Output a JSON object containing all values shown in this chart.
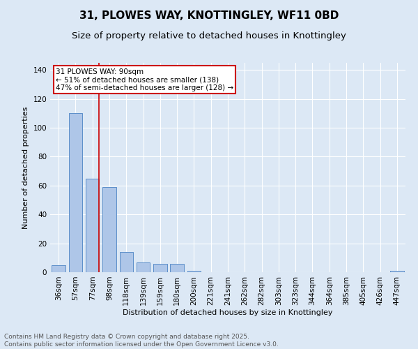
{
  "title_line1": "31, PLOWES WAY, KNOTTINGLEY, WF11 0BD",
  "title_line2": "Size of property relative to detached houses in Knottingley",
  "xlabel": "Distribution of detached houses by size in Knottingley",
  "ylabel": "Number of detached properties",
  "categories": [
    "36sqm",
    "57sqm",
    "77sqm",
    "98sqm",
    "118sqm",
    "139sqm",
    "159sqm",
    "180sqm",
    "200sqm",
    "221sqm",
    "241sqm",
    "262sqm",
    "282sqm",
    "303sqm",
    "323sqm",
    "344sqm",
    "364sqm",
    "385sqm",
    "405sqm",
    "426sqm",
    "447sqm"
  ],
  "values": [
    5,
    110,
    65,
    59,
    14,
    7,
    6,
    6,
    1,
    0,
    0,
    0,
    0,
    0,
    0,
    0,
    0,
    0,
    0,
    0,
    1
  ],
  "bar_color": "#aec6e8",
  "bar_edge_color": "#5b8ec9",
  "highlight_line_color": "#cc0000",
  "annotation_text": "31 PLOWES WAY: 90sqm\n← 51% of detached houses are smaller (138)\n47% of semi-detached houses are larger (128) →",
  "annotation_box_color": "#cc0000",
  "background_color": "#dce8f5",
  "plot_bg_color": "#dce8f5",
  "ylim": [
    0,
    145
  ],
  "yticks": [
    0,
    20,
    40,
    60,
    80,
    100,
    120,
    140
  ],
  "title_fontsize": 11,
  "subtitle_fontsize": 9.5,
  "axis_label_fontsize": 8,
  "tick_fontsize": 7.5,
  "annotation_fontsize": 7.5,
  "footer_fontsize": 6.5
}
